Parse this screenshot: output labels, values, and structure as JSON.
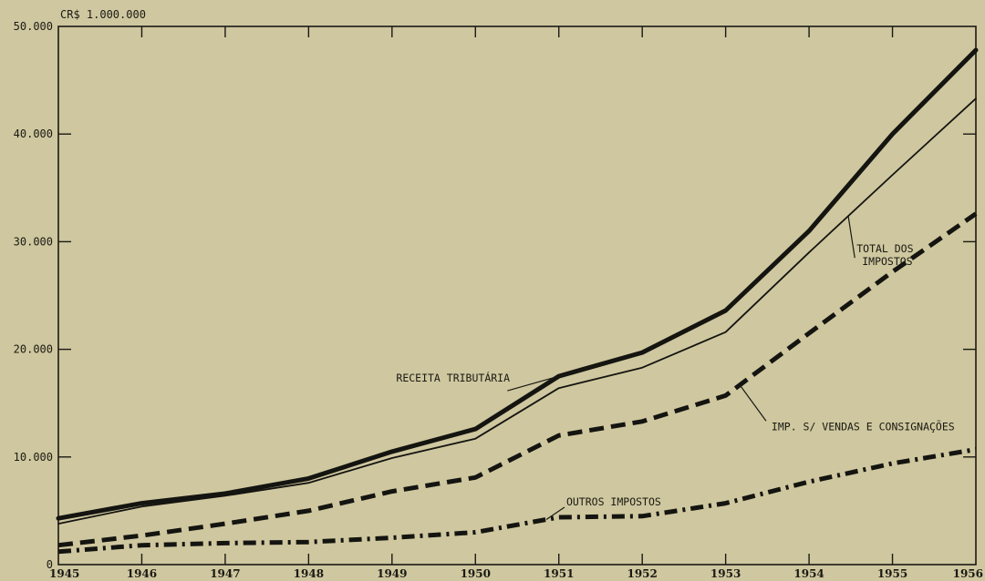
{
  "chart_data": {
    "type": "line",
    "unit_label": "CR$ 1.000.000",
    "x": [
      1945,
      1946,
      1947,
      1948,
      1949,
      1950,
      1951,
      1952,
      1953,
      1954,
      1955,
      1956
    ],
    "x_tick_labels": [
      "1945",
      "1946",
      "1947",
      "1948",
      "1949",
      "1950",
      "1951",
      "1952",
      "1953",
      "1954",
      "1955",
      "1956"
    ],
    "y_tick_values": [
      0,
      10000,
      20000,
      30000,
      40000,
      50000
    ],
    "y_tick_labels": [
      "0",
      "10.000",
      "20.000",
      "30.000",
      "40.000",
      "50.000"
    ],
    "ylim": [
      0,
      50000
    ],
    "xlim": [
      1945,
      1956
    ],
    "grid": false,
    "series": [
      {
        "name": "RECEITA TRIBUTÁRIA",
        "style": "thick-solid",
        "values": [
          4300,
          5700,
          6600,
          8000,
          10500,
          12600,
          17500,
          19700,
          23600,
          31000,
          40000,
          47800
        ]
      },
      {
        "name": "TOTAL DOS IMPOSTOS",
        "style": "thin-solid",
        "values": [
          3800,
          5400,
          6400,
          7600,
          9900,
          11700,
          16400,
          18300,
          21600,
          29000,
          36200,
          43300
        ]
      },
      {
        "name": "IMP. S/ VENDAS E CONSIGNAÇÕES",
        "style": "dashed",
        "values": [
          1800,
          2700,
          3800,
          5000,
          6800,
          8100,
          12000,
          13300,
          15700,
          21500,
          27200,
          32600
        ]
      },
      {
        "name": "OUTROS IMPOSTOS",
        "style": "dash-dot",
        "values": [
          1200,
          1800,
          2000,
          2100,
          2500,
          3000,
          4400,
          4500,
          5700,
          7700,
          9400,
          10700
        ]
      }
    ],
    "annotations": [
      {
        "lines": [
          "RECEITA TRIBUTÁRIA"
        ],
        "series_index": 0,
        "anchor_x": 1951.55,
        "text_x": 1949.05,
        "text_y": 17000,
        "align": "start"
      },
      {
        "lines": [
          "TOTAL DOS",
          "IMPOSTOS"
        ],
        "series_index": 1,
        "anchor_x": 1954.47,
        "text_x": 1954.57,
        "text_y": 29000,
        "align": "start"
      },
      {
        "lines": [
          "IMP. S/ VENDAS E CONSIGNAÇÕES"
        ],
        "series_index": 2,
        "anchor_x": 1953.17,
        "text_x": 1953.55,
        "text_y": 12500,
        "align": "start"
      },
      {
        "lines": [
          "OUTROS IMPOSTOS"
        ],
        "series_index": 3,
        "anchor_x": 1950.85,
        "text_x": 1951.09,
        "text_y": 5500,
        "align": "start"
      }
    ]
  }
}
